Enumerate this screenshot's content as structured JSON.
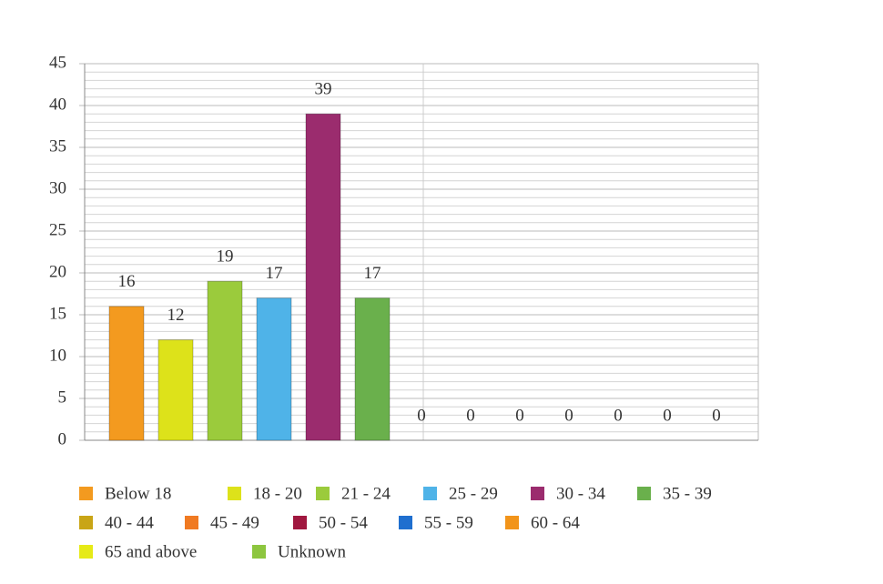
{
  "chart_data": {
    "type": "bar",
    "categories": [
      "Below 18",
      "18 - 20",
      "21 - 24",
      "25 - 29",
      "30 - 34",
      "35 - 39",
      "40 - 44",
      "45 - 49",
      "50 - 54",
      "55 - 59",
      "60 - 64",
      "65 and above",
      "Unknown"
    ],
    "values": [
      16,
      12,
      19,
      17,
      39,
      17,
      0,
      0,
      0,
      0,
      0,
      0,
      0
    ],
    "colors": [
      "#f39a1f",
      "#dde21a",
      "#9bcb3c",
      "#4fb3e8",
      "#9b2c6e",
      "#6ab04c",
      "#c9a516",
      "#f07a22",
      "#a0173f",
      "#1f6fcf",
      "#f2941a",
      "#e6ea17",
      "#8dc63f"
    ],
    "ylim": [
      0,
      45
    ],
    "yticks": [
      0,
      5,
      10,
      15,
      20,
      25,
      30,
      35,
      40,
      45
    ],
    "grid": true
  }
}
